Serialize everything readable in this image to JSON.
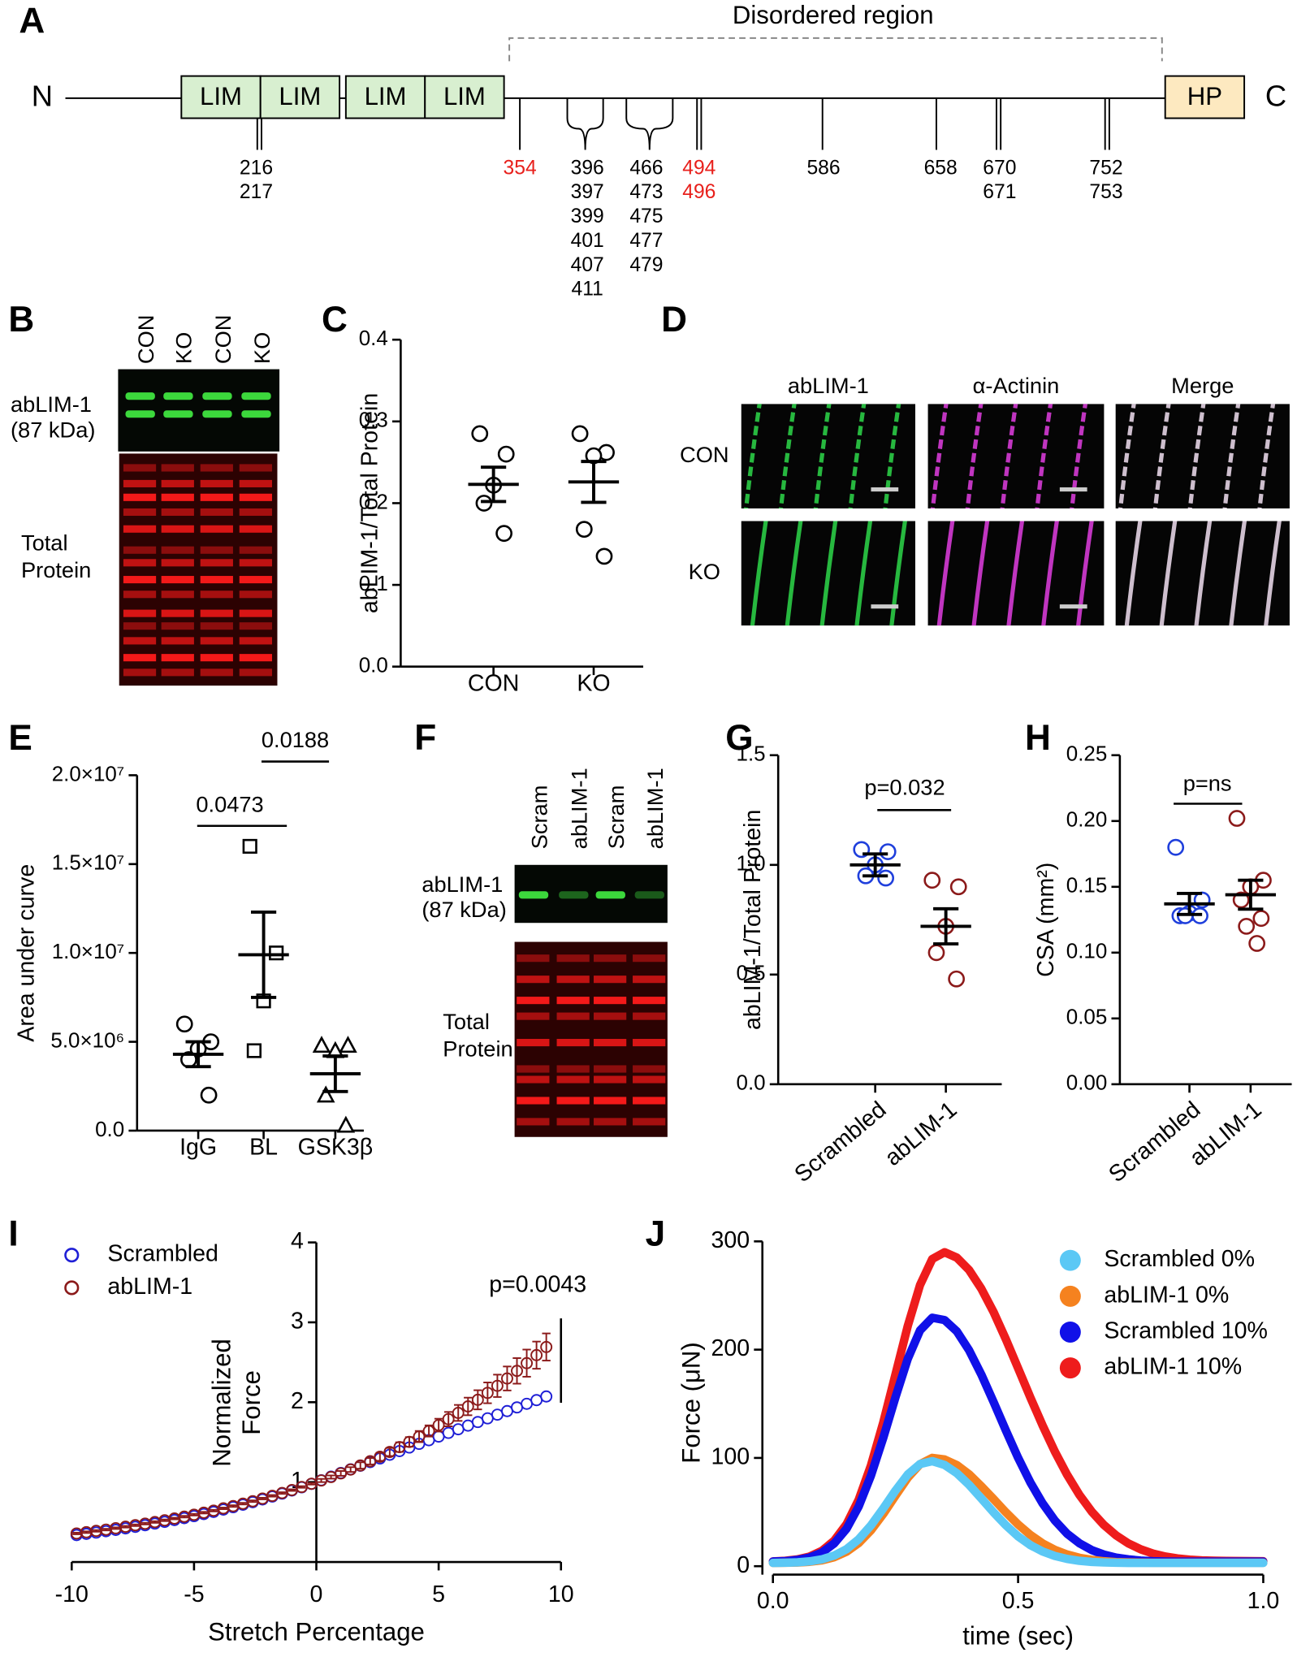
{
  "figure": {
    "panel_labels": [
      "A",
      "B",
      "C",
      "D",
      "E",
      "F",
      "G",
      "H",
      "I",
      "J"
    ]
  },
  "diagram": {
    "n_label": "N",
    "c_label": "C",
    "domains": [
      "LIM",
      "LIM",
      "LIM",
      "LIM",
      "HP"
    ],
    "region_label": "Disordered region",
    "sites": [
      {
        "labels": [
          "216",
          "217"
        ]
      },
      {
        "labels": [
          "354"
        ],
        "color": "#e8201c"
      },
      {
        "labels": [
          "396",
          "397",
          "399",
          "401",
          "407",
          "411"
        ]
      },
      {
        "labels": [
          "466",
          "473",
          "475",
          "477",
          "479"
        ]
      },
      {
        "labels": [
          "494",
          "496"
        ],
        "color": "#e8201c"
      },
      {
        "labels": [
          "586"
        ]
      },
      {
        "labels": [
          "658"
        ]
      },
      {
        "labels": [
          "670",
          "671"
        ]
      },
      {
        "labels": [
          "752",
          "753"
        ]
      }
    ]
  },
  "blot_b": {
    "lanes": [
      "CON",
      "KO",
      "CON",
      "KO"
    ],
    "band_label": [
      "abLIM-1",
      "(87 kDa)"
    ],
    "total_label": [
      "Total",
      "Protein"
    ]
  },
  "micrograph_d": {
    "columns": [
      "abLIM-1",
      "α-Actinin",
      "Merge"
    ],
    "rows": [
      "CON",
      "KO"
    ]
  },
  "blot_f": {
    "lanes": [
      "Scram",
      "abLIM-1",
      "Scram",
      "abLIM-1"
    ],
    "band_label": [
      "abLIM-1",
      "(87 kDa)"
    ],
    "total_label": [
      "Total",
      "Protein"
    ]
  },
  "chart_data": [
    {
      "type": "dot",
      "ylabel": "abLIM-1/Total Protein",
      "categories": [
        "CON",
        "KO"
      ],
      "points": [
        [
          0.285,
          0.26,
          0.222,
          0.2,
          0.163
        ],
        [
          0.285,
          0.262,
          0.258,
          0.168,
          0.135
        ]
      ],
      "mean": [
        0.223,
        0.226
      ],
      "sem": [
        0.021,
        0.025
      ],
      "markers": [
        "circle",
        "circle"
      ],
      "colors": [
        "#000000",
        "#000000"
      ],
      "ylim": [
        0,
        0.4
      ],
      "yticks": [
        {
          "value": 0,
          "label": "0.0"
        },
        0.1,
        0.2,
        0.3,
        0.4
      ]
    },
    {
      "type": "dot",
      "ylabel": "Area under curve",
      "categories": [
        "IgG",
        "BL",
        "GSK3β"
      ],
      "points": [
        [
          6000000,
          5000000,
          4600000,
          4000000,
          2000000
        ],
        [
          16000000,
          10000000,
          7300000,
          4500000
        ],
        [
          4800000,
          4800000,
          4500000,
          2000000,
          300000
        ]
      ],
      "mean": [
        4300000,
        9900000,
        3200000
      ],
      "sem": [
        700000,
        2400000,
        1000000
      ],
      "markers": [
        "circle",
        "square",
        "triangle"
      ],
      "colors": [
        "#000000",
        "#000000",
        "#000000"
      ],
      "ylim": [
        0,
        20000000
      ],
      "yticks": [
        {
          "value": 0,
          "label": "0.0"
        },
        {
          "value": 5000000,
          "label": "5.0×10⁶"
        },
        {
          "value": 10000000,
          "label": "1.0×10⁷"
        },
        {
          "value": 15000000,
          "label": "1.5×10⁷"
        },
        {
          "value": 20000000,
          "label": "2.0×10⁷"
        }
      ],
      "annotations": [
        "0.0473",
        "0.0188"
      ]
    },
    {
      "type": "dot",
      "ylabel": "abLIM-1/Total Protein",
      "categories": [
        "Scrambled",
        "abLIM-1"
      ],
      "points": [
        [
          1.07,
          1.06,
          1.0,
          0.95,
          0.94
        ],
        [
          0.93,
          0.9,
          0.72,
          0.6,
          0.48
        ]
      ],
      "mean": [
        1.0,
        0.72
      ],
      "sem": [
        0.05,
        0.08
      ],
      "markers": [
        "circle",
        "circle"
      ],
      "colors": [
        "#1f3fdc",
        "#8b1a1a"
      ],
      "ylim": [
        0,
        1.5
      ],
      "yticks": [
        {
          "value": 0,
          "label": "0.0"
        },
        0.5,
        {
          "value": 1,
          "label": "1.0"
        },
        1.5
      ],
      "annotations": [
        "p=0.032"
      ]
    },
    {
      "type": "dot",
      "ylabel": "CSA (mm²)",
      "categories": [
        "Scrambled",
        "abLIM-1"
      ],
      "points": [
        [
          0.18,
          0.14,
          0.13,
          0.128,
          0.128,
          0.128
        ],
        [
          0.202,
          0.155,
          0.15,
          0.14,
          0.126,
          0.12,
          0.107
        ]
      ],
      "mean": [
        0.137,
        0.144
      ],
      "sem": [
        0.008,
        0.011
      ],
      "markers": [
        "circle",
        "circle"
      ],
      "colors": [
        "#1f3fdc",
        "#8b1a1a"
      ],
      "ylim": [
        0,
        0.25
      ],
      "yticks": [
        {
          "value": 0,
          "label": "0.00"
        },
        0.05,
        {
          "value": 0.1,
          "label": "0.10"
        },
        0.15,
        {
          "value": 0.2,
          "label": "0.20"
        },
        0.25
      ],
      "annotations": [
        "p=ns"
      ]
    },
    {
      "type": "line_scatter",
      "xlabel": "Stretch Percentage",
      "ylabel": [
        "Normalized",
        "Force"
      ],
      "x": [
        -9.8,
        -9.4,
        -9.0,
        -8.6,
        -8.2,
        -7.8,
        -7.4,
        -7.0,
        -6.6,
        -6.2,
        -5.8,
        -5.4,
        -5.0,
        -4.6,
        -4.2,
        -3.8,
        -3.4,
        -3.0,
        -2.6,
        -2.2,
        -1.8,
        -1.4,
        -1.0,
        -0.6,
        -0.2,
        0.2,
        0.6,
        1.0,
        1.4,
        1.8,
        2.2,
        2.6,
        3.0,
        3.4,
        3.8,
        4.2,
        4.6,
        5.0,
        5.4,
        5.8,
        6.2,
        6.6,
        7.0,
        7.4,
        7.8,
        8.2,
        8.6,
        9.0,
        9.4
      ],
      "series": [
        {
          "name": "Scrambled",
          "color": "#1f1fd6",
          "values": [
            0.337,
            0.352,
            0.368,
            0.385,
            0.402,
            0.421,
            0.44,
            0.46,
            0.481,
            0.502,
            0.525,
            0.549,
            0.574,
            0.6,
            0.627,
            0.656,
            0.686,
            0.717,
            0.749,
            0.783,
            0.819,
            0.856,
            0.895,
            0.935,
            0.978,
            1.023,
            1.068,
            1.114,
            1.16,
            1.205,
            1.251,
            1.296,
            1.342,
            1.388,
            1.433,
            1.479,
            1.524,
            1.57,
            1.616,
            1.661,
            1.707,
            1.752,
            1.798,
            1.844,
            1.889,
            1.935,
            1.98,
            2.026,
            2.072
          ]
        },
        {
          "name": "abLIM-1",
          "color": "#8b1a1a",
          "values": [
            0.357,
            0.373,
            0.389,
            0.405,
            0.423,
            0.441,
            0.46,
            0.48,
            0.5,
            0.522,
            0.544,
            0.567,
            0.592,
            0.617,
            0.643,
            0.671,
            0.7,
            0.73,
            0.761,
            0.794,
            0.828,
            0.863,
            0.9,
            0.939,
            0.979,
            1.02,
            1.063,
            1.109,
            1.157,
            1.208,
            1.261,
            1.317,
            1.377,
            1.438,
            1.503,
            1.57,
            1.64,
            1.713,
            1.788,
            1.866,
            1.947,
            2.03,
            2.117,
            2.205,
            2.297,
            2.392,
            2.489,
            2.589,
            2.691
          ],
          "errors": [
            0.01,
            0.01,
            0.01,
            0.01,
            0.01,
            0.01,
            0.01,
            0.01,
            0.01,
            0.01,
            0.01,
            0.01,
            0.01,
            0.01,
            0.01,
            0.01,
            0.01,
            0.01,
            0.01,
            0.01,
            0.01,
            0.01,
            0.01,
            0.01,
            0.01,
            0.02,
            0.02,
            0.03,
            0.03,
            0.04,
            0.04,
            0.05,
            0.05,
            0.06,
            0.06,
            0.07,
            0.07,
            0.08,
            0.09,
            0.1,
            0.11,
            0.12,
            0.13,
            0.14,
            0.15,
            0.16,
            0.17,
            0.17,
            0.17
          ]
        }
      ],
      "xlim": [
        -10,
        10
      ],
      "xticks": [
        -10,
        -5,
        0,
        5,
        10
      ],
      "ylim": [
        0,
        4
      ],
      "yticks": [
        1,
        2,
        3,
        4
      ],
      "annotation": "p=0.0043"
    },
    {
      "type": "line",
      "xlabel": "time (sec)",
      "ylabel": "Force (μN)",
      "x": [
        0,
        0.025,
        0.05,
        0.075,
        0.1,
        0.125,
        0.15,
        0.175,
        0.2,
        0.225,
        0.25,
        0.275,
        0.3,
        0.325,
        0.35,
        0.375,
        0.4,
        0.425,
        0.45,
        0.475,
        0.5,
        0.525,
        0.55,
        0.575,
        0.6,
        0.625,
        0.65,
        0.675,
        0.7,
        0.725,
        0.75,
        0.775,
        0.8,
        0.825,
        0.85,
        0.875,
        0.9,
        0.925,
        0.95,
        0.975,
        1.0
      ],
      "series": [
        {
          "name": "Scrambled 0%",
          "color": "#5bc8f5",
          "values": [
            3,
            3.2,
            3.6,
            4.5,
            6.3,
            9.8,
            15.7,
            24.9,
            37.7,
            53.3,
            69.9,
            84.7,
            94.4,
            97,
            93.5,
            85.9,
            75.2,
            62.6,
            49.7,
            37.8,
            27.6,
            19.5,
            13.5,
            9.4,
            6.7,
            5.0,
            4.0,
            3.5,
            3.2,
            3,
            3,
            3,
            3,
            3,
            3,
            3,
            3,
            3,
            3,
            3,
            3
          ]
        },
        {
          "name": "abLIM-1 0%",
          "color": "#f5821f",
          "values": [
            3,
            3.2,
            3.4,
            4.1,
            5.5,
            8.3,
            13.3,
            21.4,
            33.1,
            48.2,
            65.3,
            81.7,
            94.2,
            100,
            98.6,
            93.4,
            84.9,
            73.9,
            61.9,
            49.8,
            38.6,
            28.9,
            21.0,
            15.1,
            10.8,
            7.8,
            5.8,
            4.6,
            3.8,
            3.5,
            3.3,
            3.2,
            3.2,
            3.2,
            3.2,
            3.2,
            3.2,
            3.2,
            3.2,
            3.2,
            3.2
          ]
        },
        {
          "name": "Scrambled 10%",
          "color": "#1010e8",
          "values": [
            4.3,
            4.7,
            5.8,
            8.1,
            12.6,
            21.0,
            34.6,
            55.3,
            83.8,
            118.4,
            156.3,
            191.6,
            217.8,
            229.5,
            227.3,
            216.9,
            199.5,
            177.1,
            151.6,
            125.4,
            100.1,
            77.4,
            58.0,
            42.2,
            30.0,
            21.2,
            14.9,
            10.7,
            7.9,
            6.3,
            5.2,
            4.6,
            4.3,
            4.2,
            4.2,
            4.2,
            4.2,
            4.2,
            4.2,
            4.2,
            4.2
          ]
        },
        {
          "name": "abLIM-1 10%",
          "color": "#ee1c1c",
          "values": [
            4.4,
            5.0,
            6.3,
            9.0,
            14.2,
            23.6,
            38.8,
            61.6,
            93.2,
            132.7,
            177.5,
            222.0,
            259.7,
            283.7,
            290,
            285.0,
            273.6,
            256.4,
            234.6,
            209.6,
            182.8,
            155.9,
            129.8,
            105.8,
            84.4,
            65.9,
            50.5,
            38.1,
            28.4,
            21.0,
            15.6,
            11.7,
            9.0,
            7.2,
            6.0,
            5.4,
            5.1,
            4.9,
            4.8,
            4.7,
            4.6
          ]
        }
      ],
      "xlim": [
        0,
        1
      ],
      "xticks": [
        {
          "value": 0,
          "label": "0.0"
        },
        0.5,
        {
          "value": 1,
          "label": "1.0"
        }
      ],
      "ylim": [
        0,
        300
      ],
      "yticks": [
        0,
        100,
        200,
        300
      ]
    }
  ]
}
